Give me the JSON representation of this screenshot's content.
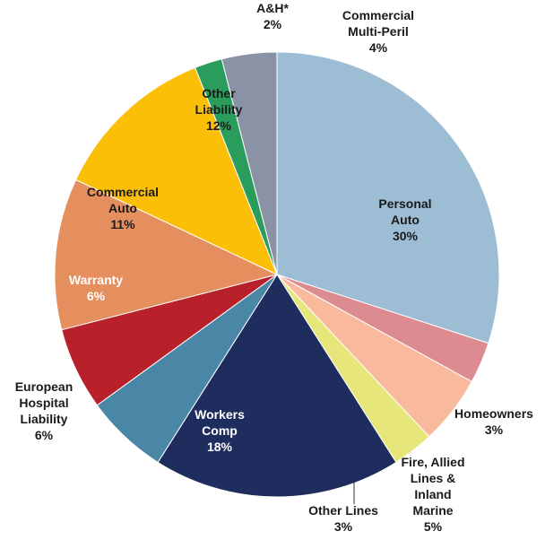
{
  "chart_data": {
    "type": "pie",
    "title": "",
    "start_at": "12 o'clock",
    "direction": "clockwise",
    "slices": [
      {
        "label_lines": [
          "Personal",
          "Auto"
        ],
        "value": 30,
        "value_text": "30%",
        "color": "#9dbdd4",
        "label_color": "#1a1a1a",
        "label_placement": "inside"
      },
      {
        "label_lines": [
          "Homeowners"
        ],
        "value": 3,
        "value_text": "3%",
        "color": "#dc8b91",
        "label_color": "#1a1a1a",
        "label_placement": "outside"
      },
      {
        "label_lines": [
          "Fire, Allied",
          "Lines &",
          "Inland",
          "Marine"
        ],
        "value": 5,
        "value_text": "5%",
        "color": "#f8b99d",
        "label_color": "#1a1a1a",
        "label_placement": "outside"
      },
      {
        "label_lines": [
          "Other Lines"
        ],
        "value": 3,
        "value_text": "3%",
        "color": "#e6e67a",
        "label_color": "#1a1a1a",
        "label_placement": "outside"
      },
      {
        "label_lines": [
          "Workers",
          "Comp"
        ],
        "value": 18,
        "value_text": "18%",
        "color": "#1e2d5e",
        "label_color": "#ffffff",
        "label_placement": "inside"
      },
      {
        "label_lines": [
          "European",
          "Hospital",
          "Liability"
        ],
        "value": 6,
        "value_text": "6%",
        "color": "#4a86a6",
        "label_color": "#1a1a1a",
        "label_placement": "outside"
      },
      {
        "label_lines": [
          "Warranty"
        ],
        "value": 6,
        "value_text": "6%",
        "color": "#b8202a",
        "label_color": "#ffffff",
        "label_placement": "inside"
      },
      {
        "label_lines": [
          "Commercial",
          "Auto"
        ],
        "value": 11,
        "value_text": "11%",
        "color": "#e58f5f",
        "label_color": "#1a1a1a",
        "label_placement": "inside"
      },
      {
        "label_lines": [
          "Other",
          "Liability"
        ],
        "value": 12,
        "value_text": "12%",
        "color": "#fbbf08",
        "label_color": "#1a1a1a",
        "label_placement": "inside"
      },
      {
        "label_lines": [
          "A&H*"
        ],
        "value": 2,
        "value_text": "2%",
        "color": "#2a9d5c",
        "label_color": "#1a1a1a",
        "label_placement": "outside"
      },
      {
        "label_lines": [
          "Commercial",
          "Multi-Peril"
        ],
        "value": 4,
        "value_text": "4%",
        "color": "#8a93a6",
        "label_color": "#1a1a1a",
        "label_placement": "outside"
      }
    ]
  }
}
